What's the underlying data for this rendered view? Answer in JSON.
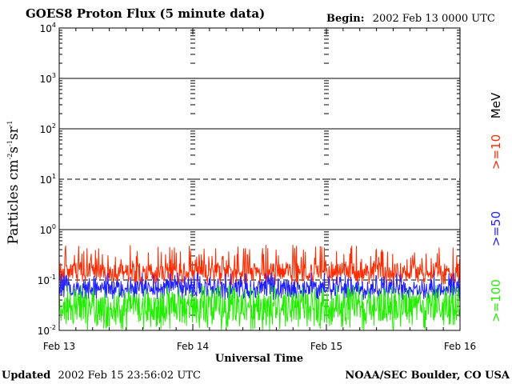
{
  "header": {
    "title": "GOES8 Proton Flux (5 minute data)",
    "begin_label": "Begin:",
    "begin_value": "2002 Feb 13 0000 UTC"
  },
  "footer": {
    "updated_label": "Updated",
    "updated_value": "2002 Feb 15 23:56:02 UTC",
    "source": "NOAA/SEC Boulder, CO USA"
  },
  "chart_data": {
    "type": "line",
    "title": "GOES8 Proton Flux (5 minute data)",
    "xlabel": "Universal Time",
    "ylabel_base": "Particles cm",
    "ylabel_parts": [
      "-2",
      "s",
      "-1",
      "sr",
      "-1"
    ],
    "x_ticks": [
      "Feb 13",
      "Feb 14",
      "Feb 15",
      "Feb 16"
    ],
    "y_ticks": [
      {
        "base": "10",
        "exp": "4"
      },
      {
        "base": "10",
        "exp": "3"
      },
      {
        "base": "10",
        "exp": "2"
      },
      {
        "base": "10",
        "exp": "1"
      },
      {
        "base": "10",
        "exp": "0"
      },
      {
        "base": "10",
        "exp": "-1"
      },
      {
        "base": "10",
        "exp": "-2"
      }
    ],
    "y_scale": "log",
    "ylim": [
      0.01,
      10000
    ],
    "x_range": [
      "2002 Feb 13 0000 UTC",
      "2002 Feb 16 0000 UTC"
    ],
    "dashed_reference_levels": [
      10,
      0.1
    ],
    "legend_placement": "right (vertical)",
    "legend_unit": "MeV",
    "series": [
      {
        "name": ">=10",
        "color": "#ff2a00",
        "typical_flux": 0.15,
        "range": [
          0.08,
          0.5
        ]
      },
      {
        "name": ">=50",
        "color": "#2020ff",
        "typical_flux": 0.07,
        "range": [
          0.04,
          0.14
        ]
      },
      {
        "name": ">=100",
        "color": "#22ee00",
        "typical_flux": 0.03,
        "range": [
          0.01,
          0.08
        ]
      }
    ]
  }
}
